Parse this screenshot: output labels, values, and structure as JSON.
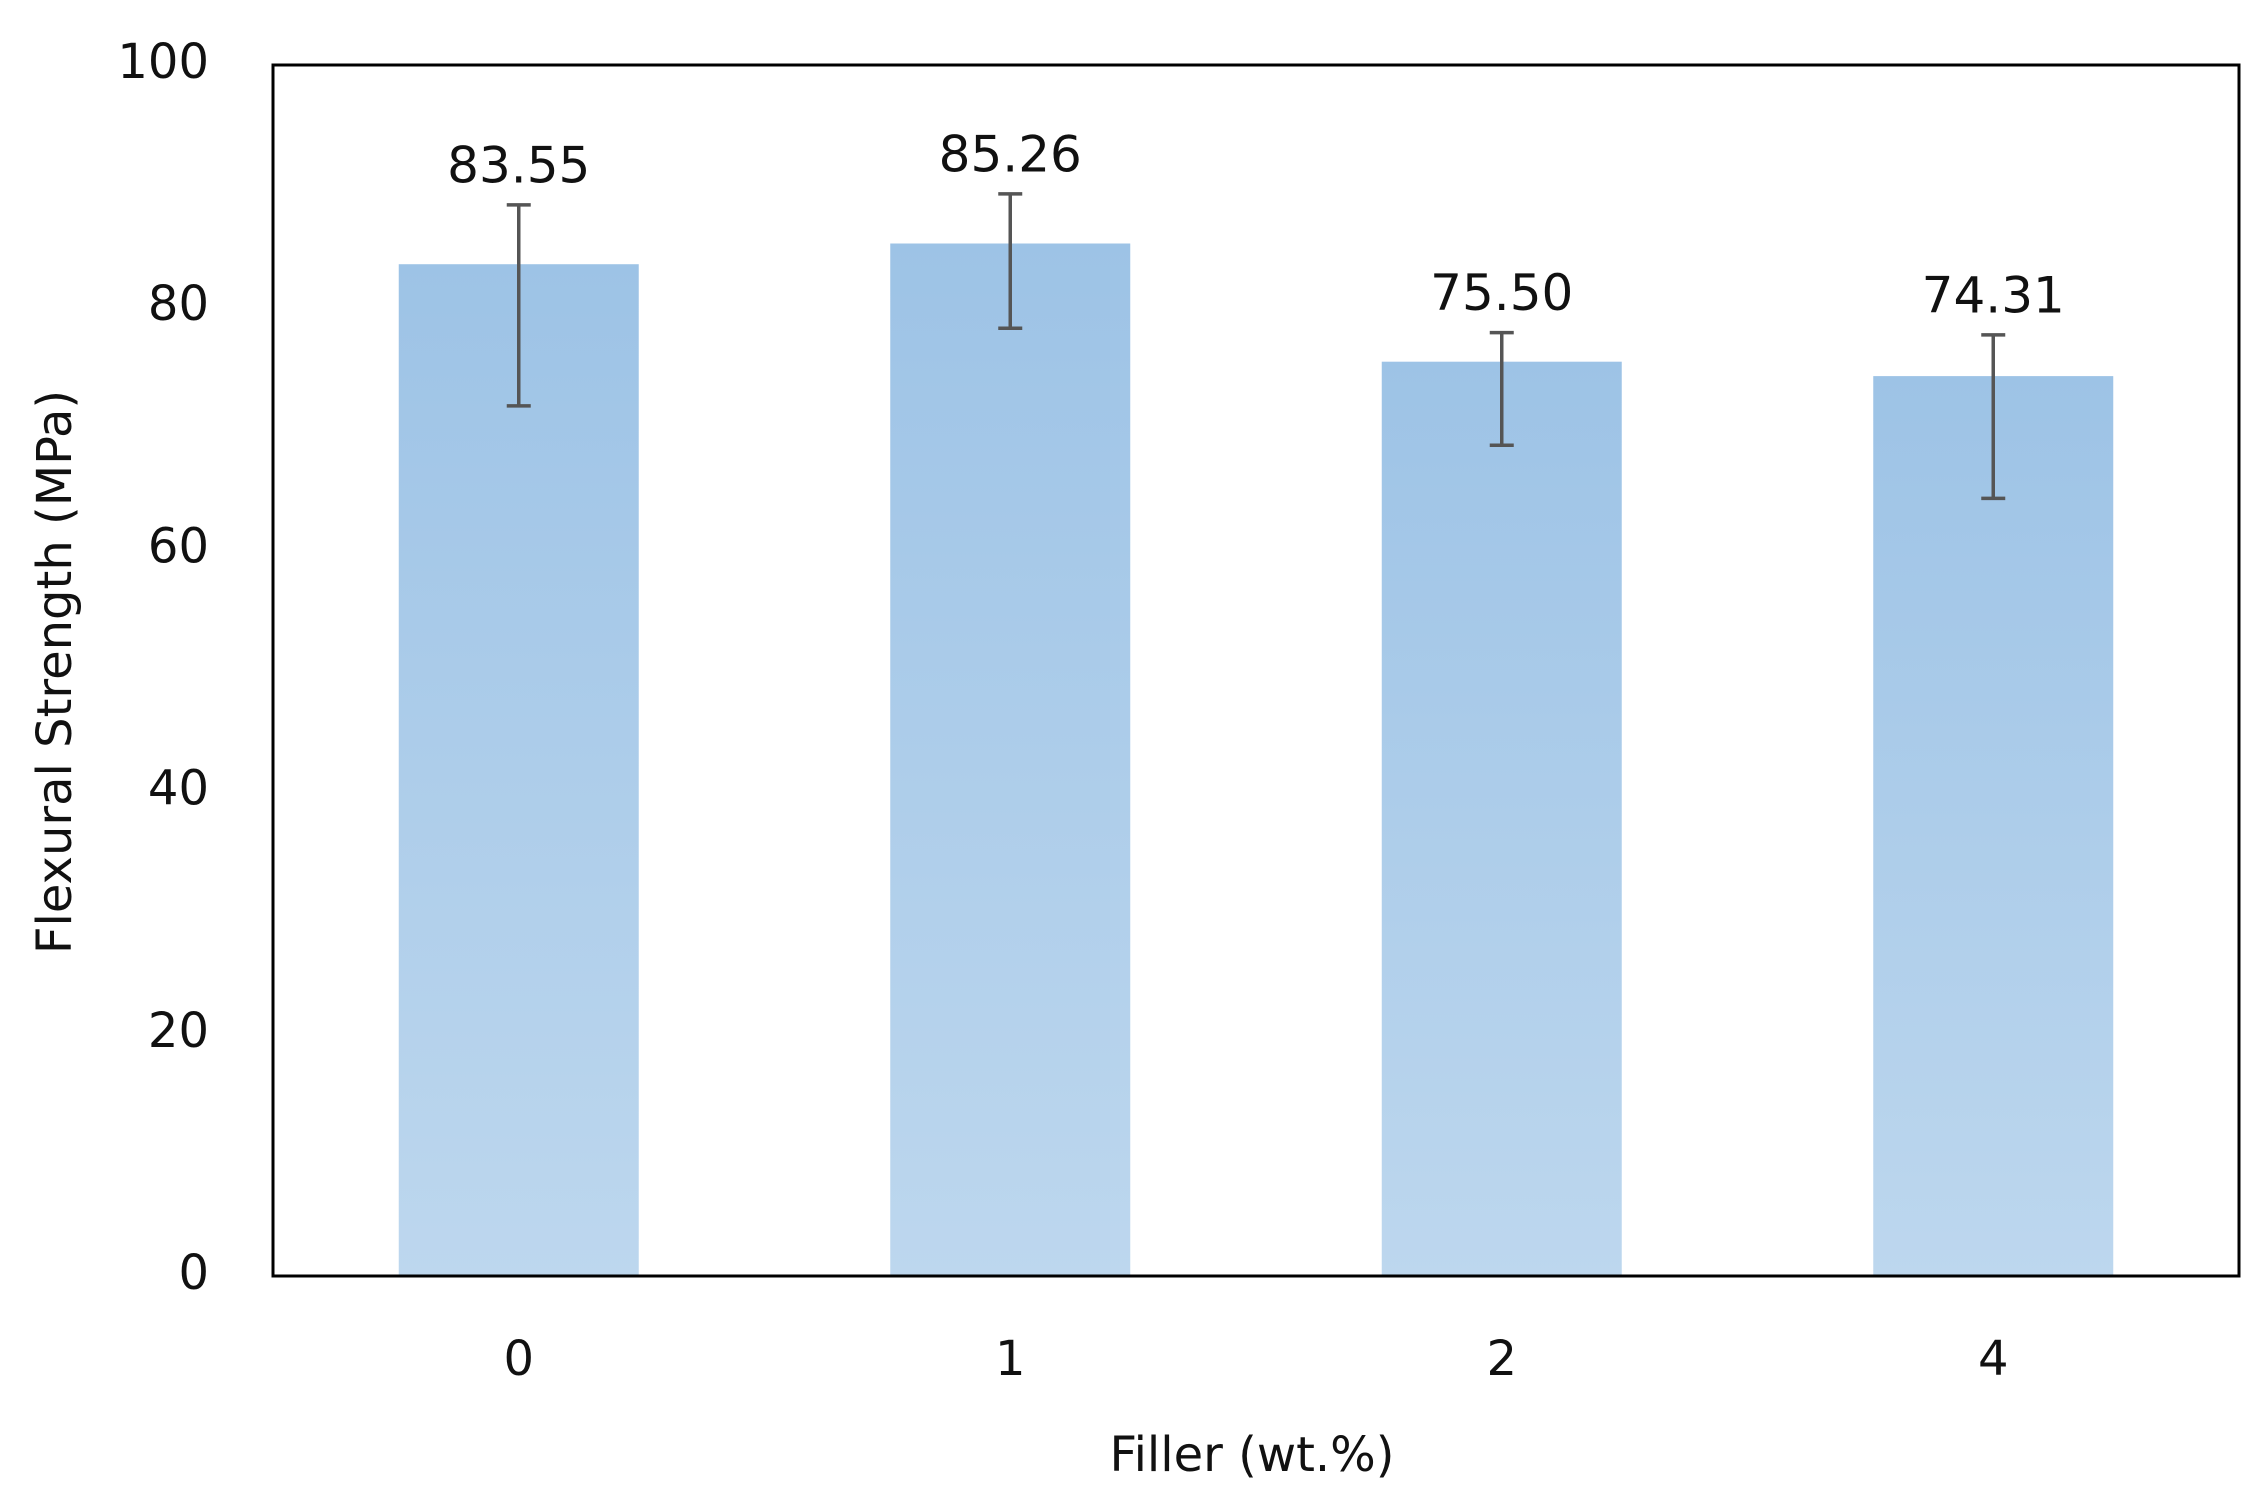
{
  "chart_data": {
    "type": "bar",
    "x_label": "Filler (wt.%)",
    "y_label": "Flexural Strength (MPa)",
    "categories": [
      "0",
      "1",
      "2",
      "4"
    ],
    "values": [
      83.55,
      85.26,
      75.5,
      74.31
    ],
    "value_labels": [
      "83.55",
      "85.26",
      "75.50",
      "74.31"
    ],
    "error_plus": [
      4.9,
      4.1,
      2.4,
      3.4
    ],
    "error_minus": [
      11.7,
      7.0,
      6.9,
      10.1
    ],
    "color": "#9dc3e6",
    "ylim": [
      0,
      100
    ],
    "yticks": [
      0,
      20,
      40,
      60,
      80,
      100
    ],
    "grid": false
  }
}
